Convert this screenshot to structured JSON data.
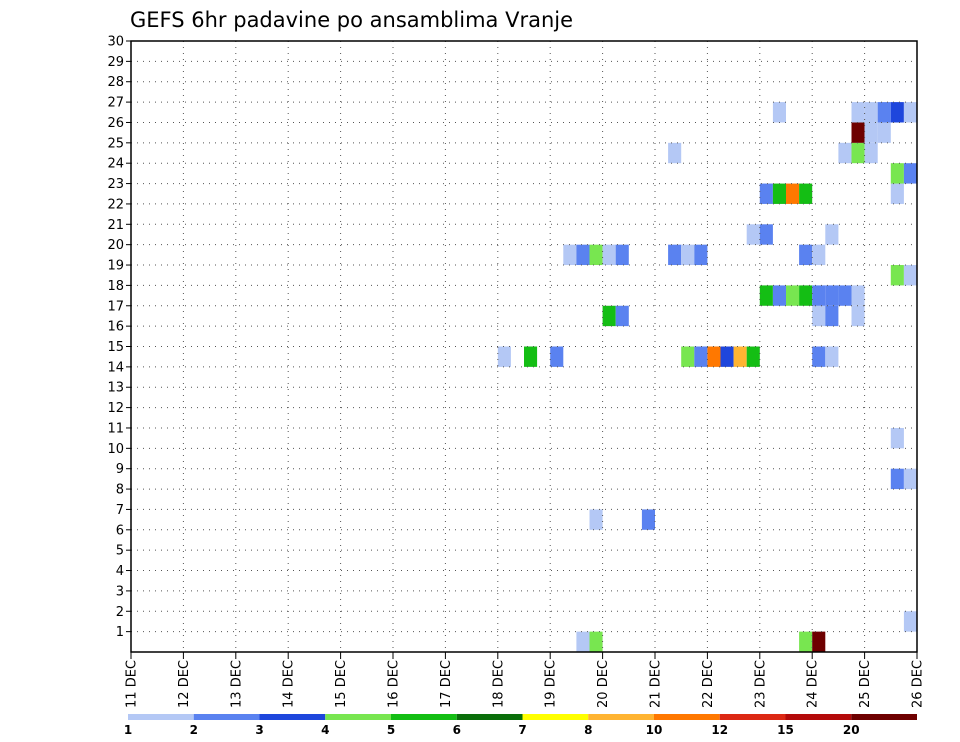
{
  "chart_data": {
    "type": "heatmap",
    "title": "GEFS 6hr padavine po ansamblima Vranje",
    "xlabel": "",
    "ylabel": "",
    "x_unit": "6-hour steps from 11 DEC",
    "x_range": [
      0,
      60
    ],
    "y_range": [
      0,
      30
    ],
    "y_ticks": [
      "1",
      "2",
      "3",
      "4",
      "5",
      "6",
      "7",
      "8",
      "9",
      "10",
      "11",
      "12",
      "13",
      "14",
      "15",
      "16",
      "17",
      "18",
      "19",
      "20",
      "21",
      "22",
      "23",
      "24",
      "25",
      "26",
      "27",
      "28",
      "29",
      "30"
    ],
    "x_ticks": [
      "11 DEC",
      "12 DEC",
      "13 DEC",
      "14 DEC",
      "15 DEC",
      "16 DEC",
      "17 DEC",
      "18 DEC",
      "19 DEC",
      "20 DEC",
      "21 DEC",
      "22 DEC",
      "23 DEC",
      "24 DEC",
      "25 DEC",
      "26 DEC"
    ],
    "grid": true,
    "legend": {
      "placement": "bottom",
      "labels": [
        "1",
        "2",
        "3",
        "4",
        "5",
        "6",
        "7",
        "8",
        "10",
        "12",
        "15",
        "20"
      ],
      "colors": [
        "#b4c8f5",
        "#5a82f0",
        "#1e46dc",
        "#78e650",
        "#14be14",
        "#0a6e0a",
        "#ffff00",
        "#ffb432",
        "#ff7800",
        "#dc2814",
        "#b40a0a",
        "#6e0000"
      ]
    },
    "cells": [
      {
        "ens": 1,
        "step": 34,
        "class": 1
      },
      {
        "ens": 1,
        "step": 35,
        "class": 4
      },
      {
        "ens": 1,
        "step": 51,
        "class": 4
      },
      {
        "ens": 1,
        "step": 52,
        "class": 12
      },
      {
        "ens": 2,
        "step": 59,
        "class": 1
      },
      {
        "ens": 7,
        "step": 35,
        "class": 1
      },
      {
        "ens": 7,
        "step": 39,
        "class": 2
      },
      {
        "ens": 9,
        "step": 58,
        "class": 2
      },
      {
        "ens": 9,
        "step": 59,
        "class": 1
      },
      {
        "ens": 11,
        "step": 58,
        "class": 1
      },
      {
        "ens": 15,
        "step": 28,
        "class": 1
      },
      {
        "ens": 15,
        "step": 30,
        "class": 5
      },
      {
        "ens": 15,
        "step": 32,
        "class": 2
      },
      {
        "ens": 15,
        "step": 42,
        "class": 4
      },
      {
        "ens": 15,
        "step": 43,
        "class": 2
      },
      {
        "ens": 15,
        "step": 44,
        "class": 9
      },
      {
        "ens": 15,
        "step": 45,
        "class": 3
      },
      {
        "ens": 15,
        "step": 46,
        "class": 8
      },
      {
        "ens": 15,
        "step": 47,
        "class": 5
      },
      {
        "ens": 15,
        "step": 52,
        "class": 2
      },
      {
        "ens": 15,
        "step": 53,
        "class": 1
      },
      {
        "ens": 17,
        "step": 36,
        "class": 5
      },
      {
        "ens": 17,
        "step": 37,
        "class": 2
      },
      {
        "ens": 17,
        "step": 52,
        "class": 1
      },
      {
        "ens": 17,
        "step": 53,
        "class": 2
      },
      {
        "ens": 17,
        "step": 55,
        "class": 1
      },
      {
        "ens": 18,
        "step": 48,
        "class": 5
      },
      {
        "ens": 18,
        "step": 49,
        "class": 2
      },
      {
        "ens": 18,
        "step": 50,
        "class": 4
      },
      {
        "ens": 18,
        "step": 51,
        "class": 5
      },
      {
        "ens": 18,
        "step": 52,
        "class": 2
      },
      {
        "ens": 18,
        "step": 53,
        "class": 2
      },
      {
        "ens": 18,
        "step": 54,
        "class": 2
      },
      {
        "ens": 18,
        "step": 55,
        "class": 1
      },
      {
        "ens": 19,
        "step": 58,
        "class": 4
      },
      {
        "ens": 19,
        "step": 59,
        "class": 1
      },
      {
        "ens": 20,
        "step": 33,
        "class": 1
      },
      {
        "ens": 20,
        "step": 34,
        "class": 2
      },
      {
        "ens": 20,
        "step": 35,
        "class": 4
      },
      {
        "ens": 20,
        "step": 36,
        "class": 1
      },
      {
        "ens": 20,
        "step": 37,
        "class": 2
      },
      {
        "ens": 20,
        "step": 41,
        "class": 2
      },
      {
        "ens": 20,
        "step": 42,
        "class": 1
      },
      {
        "ens": 20,
        "step": 43,
        "class": 2
      },
      {
        "ens": 20,
        "step": 51,
        "class": 2
      },
      {
        "ens": 20,
        "step": 52,
        "class": 1
      },
      {
        "ens": 21,
        "step": 47,
        "class": 1
      },
      {
        "ens": 21,
        "step": 48,
        "class": 2
      },
      {
        "ens": 21,
        "step": 53,
        "class": 1
      },
      {
        "ens": 23,
        "step": 48,
        "class": 2
      },
      {
        "ens": 23,
        "step": 49,
        "class": 5
      },
      {
        "ens": 23,
        "step": 50,
        "class": 9
      },
      {
        "ens": 23,
        "step": 51,
        "class": 5
      },
      {
        "ens": 23,
        "step": 58,
        "class": 1
      },
      {
        "ens": 24,
        "step": 58,
        "class": 4
      },
      {
        "ens": 24,
        "step": 59,
        "class": 2
      },
      {
        "ens": 25,
        "step": 41,
        "class": 1
      },
      {
        "ens": 25,
        "step": 54,
        "class": 1
      },
      {
        "ens": 25,
        "step": 55,
        "class": 4
      },
      {
        "ens": 25,
        "step": 56,
        "class": 1
      },
      {
        "ens": 26,
        "step": 55,
        "class": 12
      },
      {
        "ens": 26,
        "step": 56,
        "class": 1
      },
      {
        "ens": 26,
        "step": 57,
        "class": 1
      },
      {
        "ens": 27,
        "step": 49,
        "class": 1
      },
      {
        "ens": 27,
        "step": 55,
        "class": 1
      },
      {
        "ens": 27,
        "step": 56,
        "class": 1
      },
      {
        "ens": 27,
        "step": 57,
        "class": 2
      },
      {
        "ens": 27,
        "step": 58,
        "class": 3
      },
      {
        "ens": 27,
        "step": 59,
        "class": 1
      }
    ]
  }
}
